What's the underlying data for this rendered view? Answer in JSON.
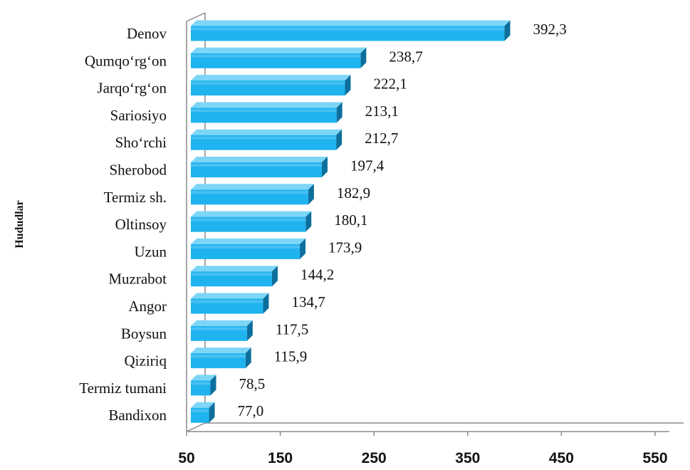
{
  "chart_data": {
    "type": "bar",
    "orientation": "horizontal",
    "ylabel": "Hududlar",
    "xlabel": "",
    "title": "",
    "xlim": [
      50,
      550
    ],
    "xticks": [
      50,
      150,
      250,
      350,
      450,
      550
    ],
    "xtick_labels": [
      "50",
      "150",
      "250",
      "350",
      "450",
      "550"
    ],
    "categories": [
      "Denov",
      "Qumqo‘rg‘on",
      "Jarqo‘rg‘on",
      "Sariosiyo",
      "Sho‘rchi",
      "Sherobod",
      "Termiz sh.",
      "Oltinsoy",
      "Uzun",
      "Muzrabot",
      "Angor",
      "Boysun",
      "Qiziriq",
      "Termiz tumani",
      "Bandixon"
    ],
    "values": [
      392.3,
      238.7,
      222.1,
      213.1,
      212.7,
      197.4,
      182.9,
      180.1,
      173.9,
      144.2,
      134.7,
      117.5,
      115.9,
      78.5,
      77.0
    ],
    "value_labels": [
      "392,3",
      "238,7",
      "222,1",
      "213,1",
      "212,7",
      "197,4",
      "182,9",
      "180,1",
      "173,9",
      "144,2",
      "134,7",
      "117,5",
      "115,9",
      "78,5",
      "77,0"
    ],
    "grid": false,
    "legend": "none",
    "bar_style": "3d",
    "colors": {
      "bar_front": "#1fb3ef",
      "bar_top": "#7dd6f7",
      "bar_side": "#0d6f9c",
      "axis": "#8a8a8a"
    }
  }
}
